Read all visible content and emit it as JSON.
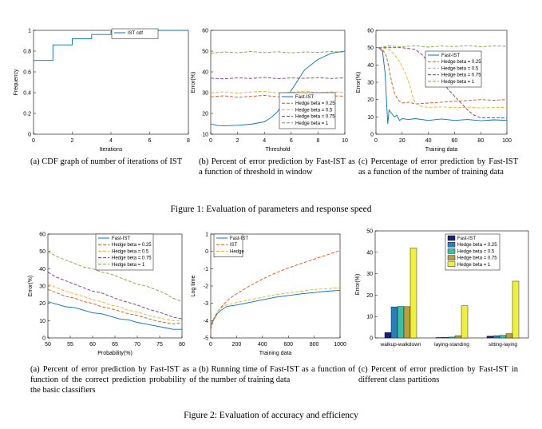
{
  "figure1": {
    "caption": "Figure 1: Evaluation of parameters and response speed",
    "panels": [
      {
        "caption": "(a) CDF graph of number of iterations of IST"
      },
      {
        "caption": "(b) Percent of error prediction by Fast-IST as a function of threshold in window"
      },
      {
        "caption": "(c) Percentage of error prediction by Fast-IST as a function of the number of training data"
      }
    ]
  },
  "figure2": {
    "caption": "Figure 2: Evaluation of accuracy and efficiency",
    "panels": [
      {
        "caption": "(a) Percent of error prediction by Fast-IST as a function of the correct prediction probability of the basic classifiers"
      },
      {
        "caption": "(b) Running time of Fast-IST as a function of the number of training data"
      },
      {
        "caption": "(c) Percent of error prediction by Fast-IST in different class partitions"
      }
    ]
  },
  "colors": {
    "blue": "#0072bd",
    "orange": "#d95319",
    "yellow": "#edb120",
    "purple": "#7e2f8e",
    "green": "#77ac30",
    "navy": "#1f1f7a",
    "teal": "#2a9d9d",
    "cyan": "#38c1c1",
    "gold": "#d6b84a",
    "bright": "#e8e83a"
  },
  "chart_data": [
    {
      "id": "c1a",
      "type": "line",
      "title": "",
      "xlabel": "Iterations",
      "ylabel": "Frequency",
      "xlim": [
        0,
        8
      ],
      "ylim": [
        0,
        1
      ],
      "xticks": [
        "0",
        "2",
        "4",
        "6",
        "8"
      ],
      "yticks": [
        "0",
        "0.2",
        "0.4",
        "0.6",
        "0.8",
        "1"
      ],
      "legend": "top-right",
      "series": [
        {
          "name": "IST cdf",
          "color": "#0072bd",
          "step": true,
          "x": [
            0,
            1,
            1,
            2,
            2,
            3,
            3,
            4,
            4,
            5,
            5,
            8
          ],
          "y": [
            0.71,
            0.71,
            0.86,
            0.86,
            0.92,
            0.92,
            0.96,
            0.96,
            0.99,
            0.99,
            1.0,
            1.0
          ]
        }
      ]
    },
    {
      "id": "c1b",
      "type": "line",
      "title": "",
      "xlabel": "Threshold",
      "ylabel": "Error(%)",
      "xlim": [
        0,
        10
      ],
      "ylim": [
        10,
        60
      ],
      "xticks": [
        "0",
        "2",
        "4",
        "6",
        "8",
        "10"
      ],
      "yticks": [
        "10",
        "20",
        "30",
        "40",
        "50",
        "60"
      ],
      "legend": "bottom-right",
      "series": [
        {
          "name": "Fast-IST",
          "color": "#0072bd",
          "dash": "",
          "x": [
            0,
            0.5,
            1,
            2,
            3,
            4,
            4.5,
            5,
            5.5,
            6,
            6.5,
            7,
            8,
            9,
            10
          ],
          "y": [
            15,
            14.2,
            14,
            14.3,
            14.8,
            16,
            18,
            21,
            26,
            31,
            36,
            41,
            46,
            49,
            50
          ]
        },
        {
          "name": "Hedge beta = 0.25",
          "color": "#d95319",
          "dash": "4,2",
          "x": [
            0,
            1,
            2,
            3,
            4,
            5,
            6,
            7,
            8,
            9,
            10
          ],
          "y": [
            28,
            28.5,
            27.8,
            28.2,
            28.7,
            28,
            28.4,
            28.9,
            28.1,
            28.5,
            28.3
          ]
        },
        {
          "name": "Hedge beta = 0.5",
          "color": "#edb120",
          "dash": "4,2",
          "x": [
            0,
            1,
            2,
            3,
            4,
            5,
            6,
            7,
            8,
            9,
            10
          ],
          "y": [
            30,
            30.4,
            29.8,
            30.3,
            30.6,
            29.9,
            30.2,
            30.7,
            30,
            30.4,
            30.2
          ]
        },
        {
          "name": "Hedge beta = 0.75",
          "color": "#7e2f8e",
          "dash": "4,2",
          "x": [
            0,
            1,
            2,
            3,
            4,
            5,
            6,
            7,
            8,
            9,
            10
          ],
          "y": [
            37,
            36.6,
            37.2,
            36.8,
            37.4,
            36.7,
            37.1,
            36.9,
            37.3,
            36.8,
            37.2
          ]
        },
        {
          "name": "Hedge beta = 1",
          "color": "#77ac30",
          "dash": "4,2",
          "x": [
            0,
            1,
            2,
            3,
            4,
            5,
            6,
            7,
            8,
            9,
            10
          ],
          "y": [
            49,
            49.6,
            49.2,
            49.8,
            49.3,
            49.7,
            49.1,
            49.6,
            49.4,
            49.8,
            49.5
          ]
        }
      ]
    },
    {
      "id": "c1c",
      "type": "line",
      "title": "",
      "xlabel": "Training data",
      "ylabel": "Error(%)",
      "xlim": [
        0,
        100
      ],
      "ylim": [
        0,
        60
      ],
      "xticks": [
        "0",
        "20",
        "40",
        "60",
        "80",
        "100"
      ],
      "yticks": [
        "0",
        "10",
        "20",
        "30",
        "40",
        "50",
        "60"
      ],
      "legend": "top-right",
      "series": [
        {
          "name": "Fast-IST",
          "color": "#0072bd",
          "dash": "",
          "x": [
            2,
            5,
            7,
            8,
            9,
            10,
            12,
            14,
            16,
            18,
            20,
            25,
            30,
            40,
            50,
            60,
            70,
            80,
            90,
            100
          ],
          "y": [
            50,
            48,
            35,
            20,
            6,
            14,
            12,
            10,
            11,
            8,
            9,
            8.5,
            9,
            8,
            8.8,
            8,
            8.5,
            7.8,
            8.3,
            8
          ]
        },
        {
          "name": "Hedge beta = 0.25",
          "color": "#d95319",
          "dash": "4,2",
          "x": [
            2,
            5,
            8,
            10,
            12,
            14,
            16,
            18,
            20,
            25,
            30,
            40,
            50,
            60,
            70,
            80,
            90,
            100
          ],
          "y": [
            50,
            49,
            45,
            38,
            30,
            24,
            21,
            19,
            18,
            18.5,
            17.5,
            18,
            18.5,
            19,
            19.5,
            20,
            19.6,
            20
          ]
        },
        {
          "name": "Hedge beta = 0.5",
          "color": "#edb120",
          "dash": "4,2",
          "x": [
            2,
            5,
            10,
            14,
            18,
            22,
            26,
            28,
            30,
            35,
            40,
            50,
            60,
            70,
            80,
            90,
            100
          ],
          "y": [
            50,
            50,
            49,
            46,
            42,
            36,
            28,
            22,
            18,
            16,
            15.5,
            15.8,
            15.3,
            15.6,
            15.2,
            15.5,
            15.4
          ]
        },
        {
          "name": "Hedge beta = 0.75",
          "color": "#7e2f8e",
          "dash": "4,2",
          "x": [
            2,
            10,
            20,
            30,
            35,
            40,
            45,
            50,
            55,
            60,
            65,
            70,
            75,
            80,
            90,
            100
          ],
          "y": [
            50,
            50,
            50,
            49,
            46,
            42,
            36,
            32,
            26,
            22,
            18,
            14,
            11,
            9.5,
            9.5,
            9.3
          ]
        },
        {
          "name": "Hedge beta = 1",
          "color": "#77ac30",
          "dash": "4,2",
          "x": [
            2,
            10,
            20,
            30,
            40,
            50,
            60,
            70,
            80,
            90,
            100
          ],
          "y": [
            50,
            51,
            50.5,
            51.2,
            50.3,
            51,
            50.6,
            51.3,
            50.5,
            51,
            50.8
          ]
        }
      ]
    },
    {
      "id": "c2a",
      "type": "line",
      "title": "",
      "xlabel": "Probability(%)",
      "ylabel": "Error(%)",
      "xlim": [
        50,
        80
      ],
      "ylim": [
        0,
        60
      ],
      "xticks": [
        "50",
        "55",
        "60",
        "65",
        "70",
        "75",
        "80"
      ],
      "yticks": [
        "0",
        "10",
        "20",
        "30",
        "40",
        "50",
        "60"
      ],
      "legend": "top-right",
      "series": [
        {
          "name": "Fast-IST",
          "color": "#0072bd",
          "dash": "",
          "x": [
            50,
            52,
            54,
            56,
            58,
            60,
            62,
            64,
            66,
            68,
            70,
            72,
            74,
            76,
            78,
            80
          ],
          "y": [
            21,
            19.5,
            18,
            17.5,
            16,
            14.5,
            14,
            12.5,
            11,
            10.5,
            9,
            8,
            7,
            6,
            5,
            5
          ]
        },
        {
          "name": "Hedge beta = 0.25",
          "color": "#d95319",
          "dash": "4,2",
          "x": [
            50,
            52,
            54,
            56,
            58,
            60,
            62,
            64,
            66,
            68,
            70,
            72,
            74,
            76,
            78,
            80
          ],
          "y": [
            28,
            26,
            24,
            23,
            21,
            20,
            18,
            17,
            15.5,
            14,
            13,
            11.5,
            10,
            9,
            8,
            9
          ]
        },
        {
          "name": "Hedge beta = 0.5",
          "color": "#edb120",
          "dash": "4,2",
          "x": [
            50,
            52,
            54,
            56,
            58,
            60,
            62,
            64,
            66,
            68,
            70,
            72,
            74,
            76,
            78,
            80
          ],
          "y": [
            31,
            29,
            27,
            25.5,
            24,
            22,
            21,
            19,
            18,
            16,
            15,
            13.5,
            12,
            11,
            10,
            10
          ]
        },
        {
          "name": "Hedge beta = 0.75",
          "color": "#7e2f8e",
          "dash": "4,2",
          "x": [
            50,
            52,
            54,
            56,
            58,
            60,
            62,
            64,
            66,
            68,
            70,
            72,
            74,
            76,
            78,
            80
          ],
          "y": [
            38,
            35,
            33,
            31,
            29,
            27,
            26,
            24,
            22,
            20.5,
            19,
            17,
            15.5,
            14,
            12,
            11
          ]
        },
        {
          "name": "Hedge beta = 1",
          "color": "#77ac30",
          "dash": "4,2",
          "x": [
            50,
            52,
            54,
            56,
            58,
            60,
            62,
            64,
            66,
            68,
            70,
            72,
            74,
            76,
            78,
            80
          ],
          "y": [
            50,
            47,
            45,
            43,
            41,
            40,
            38,
            37,
            35,
            33,
            31,
            30,
            28,
            26,
            23,
            21
          ]
        }
      ]
    },
    {
      "id": "c2b",
      "type": "line",
      "title": "",
      "xlabel": "Training data",
      "ylabel": "Log time",
      "xlim": [
        0,
        1000
      ],
      "ylim": [
        -5,
        1
      ],
      "xticks": [
        "0",
        "200",
        "400",
        "600",
        "800",
        "1000"
      ],
      "yticks": [
        "-5",
        "-4",
        "-3",
        "-2",
        "-1",
        "0",
        "1"
      ],
      "legend": "top-left",
      "series": [
        {
          "name": "Fast-IST",
          "color": "#0072bd",
          "dash": "",
          "x": [
            0,
            20,
            50,
            80,
            120,
            150,
            200,
            300,
            400,
            500,
            600,
            700,
            800,
            900,
            1000
          ],
          "y": [
            -4.3,
            -4,
            -3.6,
            -3.4,
            -3.2,
            -3.15,
            -3.1,
            -2.95,
            -2.8,
            -2.65,
            -2.55,
            -2.45,
            -2.38,
            -2.3,
            -2.25
          ]
        },
        {
          "name": "IST",
          "color": "#d95319",
          "dash": "4,2",
          "x": [
            0,
            20,
            50,
            100,
            150,
            200,
            300,
            400,
            500,
            600,
            700,
            800,
            900,
            1000
          ],
          "y": [
            -4.5,
            -4,
            -3.5,
            -3.05,
            -2.7,
            -2.45,
            -2.0,
            -1.6,
            -1.25,
            -0.95,
            -0.7,
            -0.45,
            -0.2,
            0.05
          ]
        },
        {
          "name": "Hedge",
          "color": "#edb120",
          "dash": "4,2",
          "x": [
            0,
            20,
            50,
            100,
            150,
            200,
            300,
            400,
            500,
            600,
            700,
            800,
            900,
            1000
          ],
          "y": [
            -4.2,
            -3.9,
            -3.5,
            -3.15,
            -3.05,
            -2.95,
            -2.8,
            -2.65,
            -2.5,
            -2.4,
            -2.3,
            -2.2,
            -2.15,
            -2.1
          ]
        }
      ]
    },
    {
      "id": "c2c",
      "type": "bar",
      "title": "",
      "xlabel": "",
      "ylabel": "Error(%)",
      "ylim": [
        0,
        50
      ],
      "yticks": [
        "0",
        "10",
        "20",
        "30",
        "40",
        "50"
      ],
      "legend": "top-right",
      "categories": [
        "walkup-walkdown",
        "laying-standing",
        "sitting-laying"
      ],
      "series": [
        {
          "name": "Fast-IST",
          "color": "#1f1f7a",
          "values": [
            2.5,
            0.2,
            0.8
          ]
        },
        {
          "name": "Hedge beta = 0.25",
          "color": "#2a7fb8",
          "values": [
            14.5,
            0.3,
            1.0
          ]
        },
        {
          "name": "Hedge beta = 0.5",
          "color": "#38c1a8",
          "values": [
            14.7,
            0.4,
            1.2
          ]
        },
        {
          "name": "Hedge beta = 0.75",
          "color": "#b8a042",
          "values": [
            14.6,
            1.0,
            2.0
          ]
        },
        {
          "name": "Hedge beta = 1",
          "color": "#f0f03a",
          "values": [
            42,
            15,
            26.5
          ]
        }
      ]
    }
  ]
}
